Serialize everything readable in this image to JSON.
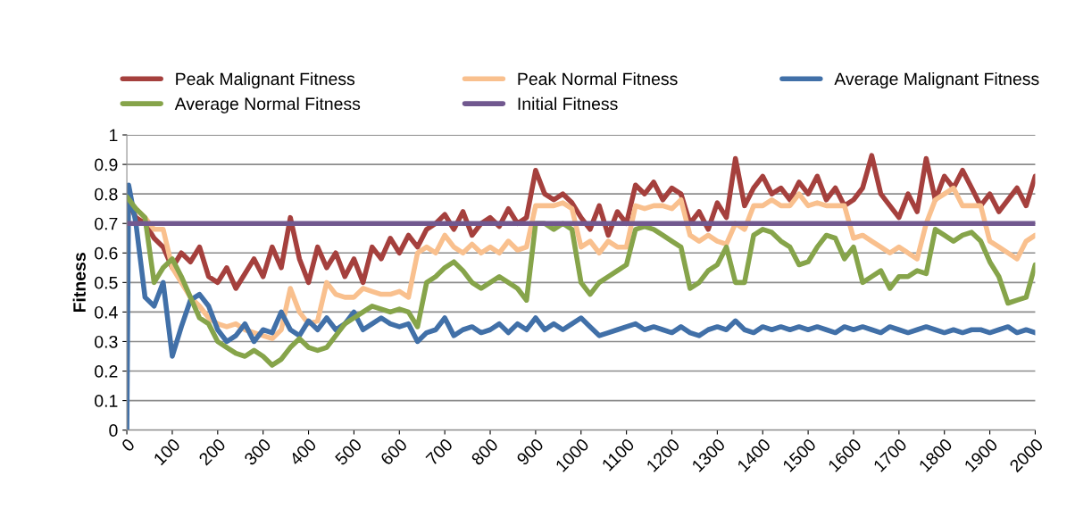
{
  "chart_data": {
    "type": "line",
    "ylabel": "Fitness",
    "x": [
      0,
      20,
      40,
      60,
      80,
      100,
      120,
      140,
      160,
      180,
      200,
      220,
      240,
      260,
      280,
      300,
      320,
      340,
      360,
      380,
      400,
      420,
      440,
      460,
      480,
      500,
      520,
      540,
      560,
      580,
      600,
      620,
      640,
      660,
      680,
      700,
      720,
      740,
      760,
      780,
      800,
      820,
      840,
      860,
      880,
      900,
      920,
      940,
      960,
      980,
      1000,
      1020,
      1040,
      1060,
      1080,
      1100,
      1120,
      1140,
      1160,
      1180,
      1200,
      1220,
      1240,
      1260,
      1280,
      1300,
      1320,
      1340,
      1360,
      1380,
      1400,
      1420,
      1440,
      1460,
      1480,
      1500,
      1520,
      1540,
      1560,
      1580,
      1600,
      1620,
      1640,
      1660,
      1680,
      1700,
      1720,
      1740,
      1760,
      1780,
      1800,
      1820,
      1840,
      1860,
      1880,
      1900,
      1920,
      1940,
      1960,
      1980,
      2000
    ],
    "series": [
      {
        "name": "Peak Malignant Fitness",
        "color": "#a5403d",
        "values": [
          0.78,
          0.72,
          0.7,
          0.65,
          0.62,
          0.55,
          0.6,
          0.57,
          0.62,
          0.52,
          0.5,
          0.55,
          0.48,
          0.53,
          0.58,
          0.52,
          0.62,
          0.55,
          0.72,
          0.58,
          0.5,
          0.62,
          0.55,
          0.6,
          0.52,
          0.58,
          0.5,
          0.62,
          0.58,
          0.65,
          0.6,
          0.66,
          0.62,
          0.68,
          0.7,
          0.73,
          0.68,
          0.74,
          0.66,
          0.7,
          0.72,
          0.69,
          0.75,
          0.7,
          0.72,
          0.88,
          0.8,
          0.78,
          0.8,
          0.77,
          0.72,
          0.68,
          0.76,
          0.66,
          0.74,
          0.7,
          0.83,
          0.8,
          0.84,
          0.78,
          0.82,
          0.8,
          0.7,
          0.74,
          0.68,
          0.77,
          0.72,
          0.92,
          0.76,
          0.82,
          0.86,
          0.8,
          0.82,
          0.78,
          0.84,
          0.8,
          0.86,
          0.78,
          0.82,
          0.76,
          0.78,
          0.82,
          0.93,
          0.8,
          0.76,
          0.72,
          0.8,
          0.74,
          0.92,
          0.78,
          0.86,
          0.82,
          0.88,
          0.82,
          0.76,
          0.8,
          0.74,
          0.78,
          0.82,
          0.76,
          0.86
        ]
      },
      {
        "name": "Peak Normal Fitness",
        "color": "#f9c08e",
        "values": [
          null,
          0.75,
          0.72,
          0.68,
          0.68,
          0.55,
          0.5,
          0.45,
          0.42,
          0.38,
          0.36,
          0.35,
          0.36,
          0.34,
          0.33,
          0.32,
          0.31,
          0.34,
          0.48,
          0.4,
          0.36,
          0.37,
          0.5,
          0.46,
          0.45,
          0.45,
          0.48,
          0.47,
          0.46,
          0.46,
          0.47,
          0.45,
          0.6,
          0.62,
          0.6,
          0.66,
          0.62,
          0.6,
          0.63,
          0.6,
          0.62,
          0.6,
          0.64,
          0.61,
          0.62,
          0.76,
          0.76,
          0.76,
          0.77,
          0.75,
          0.62,
          0.64,
          0.6,
          0.64,
          0.62,
          0.62,
          0.76,
          0.75,
          0.76,
          0.76,
          0.75,
          0.78,
          0.66,
          0.64,
          0.66,
          0.64,
          0.63,
          0.7,
          0.68,
          0.76,
          0.76,
          0.78,
          0.76,
          0.76,
          0.8,
          0.76,
          0.77,
          0.76,
          0.76,
          0.76,
          0.65,
          0.66,
          0.64,
          0.62,
          0.6,
          0.62,
          0.6,
          0.58,
          0.7,
          0.78,
          0.8,
          0.82,
          0.76,
          0.76,
          0.76,
          0.64,
          0.62,
          0.6,
          0.58,
          0.64,
          0.66
        ]
      },
      {
        "name": "Average Malignant Fitness",
        "color": "#4170a8",
        "x": [
          0,
          4,
          20,
          40,
          60,
          80,
          100,
          120,
          140,
          160,
          180,
          200,
          220,
          240,
          260,
          280,
          300,
          320,
          340,
          360,
          380,
          400,
          420,
          440,
          460,
          480,
          500,
          520,
          540,
          560,
          580,
          600,
          620,
          640,
          660,
          680,
          700,
          720,
          740,
          760,
          780,
          800,
          820,
          840,
          860,
          880,
          900,
          920,
          940,
          960,
          980,
          1000,
          1020,
          1040,
          1060,
          1080,
          1100,
          1120,
          1140,
          1160,
          1180,
          1200,
          1220,
          1240,
          1260,
          1280,
          1300,
          1320,
          1340,
          1360,
          1380,
          1400,
          1420,
          1440,
          1460,
          1480,
          1500,
          1520,
          1540,
          1560,
          1580,
          1600,
          1620,
          1640,
          1660,
          1680,
          1700,
          1720,
          1740,
          1760,
          1780,
          1800,
          1820,
          1840,
          1860,
          1880,
          1900,
          1920,
          1940,
          1960,
          1980,
          2000
        ],
        "values": [
          0.0,
          0.83,
          0.7,
          0.45,
          0.42,
          0.5,
          0.25,
          0.35,
          0.44,
          0.46,
          0.42,
          0.34,
          0.3,
          0.32,
          0.36,
          0.3,
          0.34,
          0.33,
          0.4,
          0.34,
          0.32,
          0.37,
          0.34,
          0.38,
          0.34,
          0.36,
          0.4,
          0.34,
          0.36,
          0.38,
          0.36,
          0.35,
          0.36,
          0.3,
          0.33,
          0.34,
          0.38,
          0.32,
          0.34,
          0.35,
          0.33,
          0.34,
          0.36,
          0.33,
          0.36,
          0.34,
          0.38,
          0.34,
          0.36,
          0.34,
          0.36,
          0.38,
          0.35,
          0.32,
          0.33,
          0.34,
          0.35,
          0.36,
          0.34,
          0.35,
          0.34,
          0.33,
          0.35,
          0.33,
          0.32,
          0.34,
          0.35,
          0.34,
          0.37,
          0.34,
          0.33,
          0.35,
          0.34,
          0.35,
          0.34,
          0.35,
          0.34,
          0.35,
          0.34,
          0.33,
          0.35,
          0.34,
          0.35,
          0.34,
          0.33,
          0.35,
          0.34,
          0.33,
          0.34,
          0.35,
          0.34,
          0.33,
          0.34,
          0.33,
          0.34,
          0.34,
          0.33,
          0.34,
          0.35,
          0.33,
          0.34,
          0.33
        ]
      },
      {
        "name": "Average Normal Fitness",
        "color": "#86a44a",
        "values": [
          0.79,
          0.75,
          0.72,
          0.5,
          0.55,
          0.58,
          0.52,
          0.45,
          0.38,
          0.36,
          0.3,
          0.28,
          0.26,
          0.25,
          0.27,
          0.25,
          0.22,
          0.24,
          0.28,
          0.31,
          0.28,
          0.27,
          0.28,
          0.32,
          0.36,
          0.38,
          0.4,
          0.42,
          0.41,
          0.4,
          0.41,
          0.4,
          0.35,
          0.5,
          0.52,
          0.55,
          0.57,
          0.54,
          0.5,
          0.48,
          0.5,
          0.52,
          0.5,
          0.48,
          0.44,
          0.7,
          0.7,
          0.68,
          0.7,
          0.68,
          0.5,
          0.46,
          0.5,
          0.52,
          0.54,
          0.56,
          0.68,
          0.69,
          0.68,
          0.66,
          0.64,
          0.62,
          0.48,
          0.5,
          0.54,
          0.56,
          0.62,
          0.5,
          0.5,
          0.66,
          0.68,
          0.67,
          0.64,
          0.62,
          0.56,
          0.57,
          0.62,
          0.66,
          0.65,
          0.58,
          0.62,
          0.5,
          0.52,
          0.54,
          0.48,
          0.52,
          0.52,
          0.54,
          0.53,
          0.68,
          0.66,
          0.64,
          0.66,
          0.67,
          0.64,
          0.57,
          0.52,
          0.43,
          0.44,
          0.45,
          0.56
        ]
      },
      {
        "name": "Initial Fitness",
        "color": "#71588f",
        "x": [
          0,
          2000
        ],
        "values": [
          0.7,
          0.7
        ]
      }
    ],
    "xlim": [
      0,
      2000
    ],
    "xticks": [
      0,
      100,
      200,
      300,
      400,
      500,
      600,
      700,
      800,
      900,
      1000,
      1100,
      1200,
      1300,
      1400,
      1500,
      1600,
      1700,
      1800,
      1900,
      2000
    ],
    "ylim": [
      0,
      1
    ],
    "yticks": [
      0,
      0.1,
      0.2,
      0.3,
      0.4,
      0.5,
      0.6,
      0.7,
      0.8,
      0.9,
      1
    ],
    "grid": "y",
    "legend": "top",
    "marker": "none",
    "line_style": "solid"
  }
}
